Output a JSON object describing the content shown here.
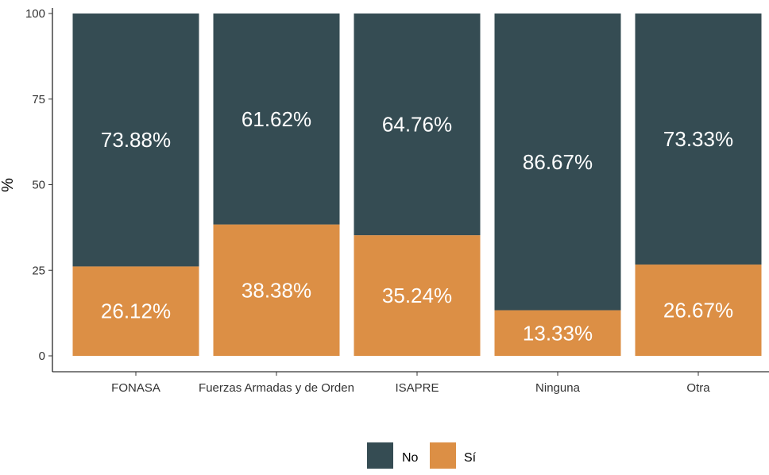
{
  "chart_data": {
    "type": "bar",
    "stacked": true,
    "title": "",
    "xlabel": "",
    "ylabel": "%",
    "ylim": [
      0,
      100
    ],
    "yticks": [
      0,
      25,
      50,
      75,
      100
    ],
    "categories": [
      "FONASA",
      "Fuerzas Armadas y de Orden",
      "ISAPRE",
      "Ninguna",
      "Otra"
    ],
    "series": [
      {
        "name": "Sí",
        "color": "#DC8F45",
        "values": [
          26.12,
          38.38,
          35.24,
          13.33,
          26.67
        ],
        "labels": [
          "26.12%",
          "38.38%",
          "35.24%",
          "13.33%",
          "26.67%"
        ]
      },
      {
        "name": "No",
        "color": "#354C53",
        "values": [
          73.88,
          61.62,
          64.76,
          86.67,
          73.33
        ],
        "labels": [
          "73.88%",
          "61.62%",
          "64.76%",
          "86.67%",
          "73.33%"
        ]
      }
    ],
    "legend": {
      "position": "bottom",
      "entries": [
        {
          "label": "No",
          "color": "#354C53"
        },
        {
          "label": "Sí",
          "color": "#DC8F45"
        }
      ]
    },
    "grid": false
  }
}
